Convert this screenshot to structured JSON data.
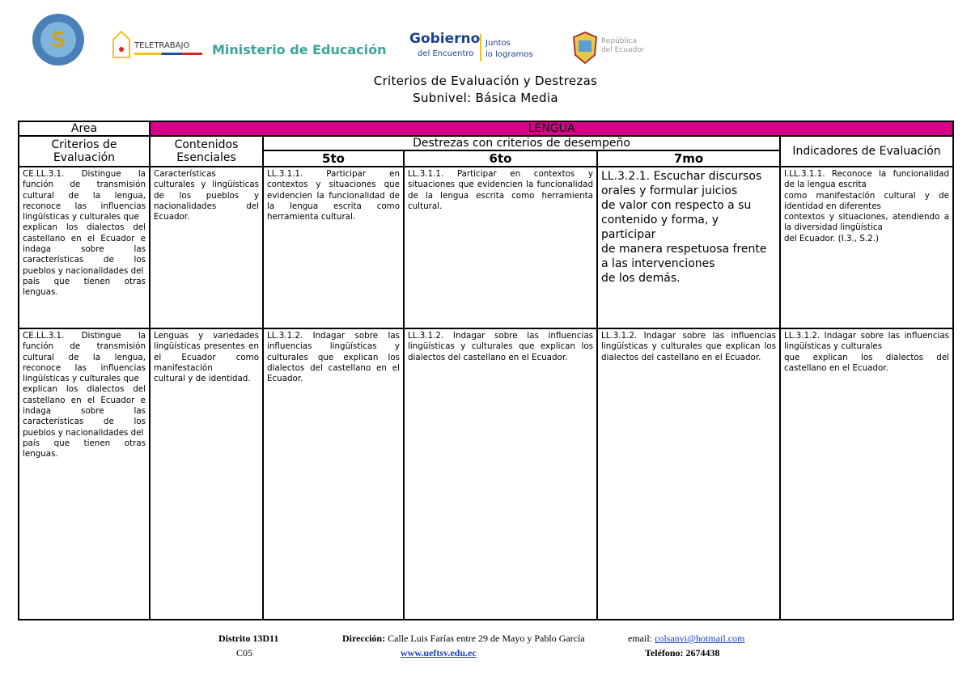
{
  "header": {
    "ministry": "Ministerio de Educación",
    "teletrabajo": "TELETRABAJO",
    "gobierno": "Gobierno",
    "gobierno_sub": "del Encuentro",
    "juntos": "Juntos",
    "juntos_sub": "lo logramos",
    "republica": "República del Ecuador",
    "title": "Criterios de Evaluación y Destrezas",
    "subtitle": "Subnivel: Básica Media"
  },
  "table": {
    "area_label": "Area",
    "area_value": "LENGUA",
    "col_criterios": "Criterios de Evaluación",
    "col_contenidos": "Contenidos Esenciales",
    "col_destrezas": "Destrezas con criterios de desempeño",
    "col_indicadores": "Indicadores de Evaluación",
    "grades": [
      "5to",
      "6to",
      "7mo"
    ],
    "rows": [
      {
        "criterio": "CE.LL.3.1. Distingue la función de transmisión cultural de la lengua, reconoce las influencias lingüísticas y culturales que\nexplican los dialectos del castellano en el Ecuador e indaga sobre las características de los pueblos y nacionalidades del\npaís que tienen otras lenguas.",
        "contenido": "Características culturales y lingüísticas de los pueblos y nacionalidades del Ecuador.",
        "d5": "LL.3.1.1. Participar en contextos y situaciones que evidencien la funcionalidad de la lengua escrita como herramienta cultural.",
        "d6": "LL.3.1.1. Participar en contextos y situaciones que evidencien la funcionalidad de la lengua escrita como herramienta cultural.",
        "d7": "LL.3.2.1. Escuchar discursos\norales y formular juicios\nde valor con respecto a su\ncontenido y forma, y\nparticipar\nde manera respetuosa frente\na las intervenciones\nde los demás.",
        "indicador": "I.LL.3.1.1. Reconoce la funcionalidad de la lengua escrita\ncomo manifestación cultural y de identidad en diferentes\ncontextos y situaciones, atendiendo a la diversidad lingüística\ndel Ecuador. (I.3., S.2.)"
      },
      {
        "criterio": "CE.LL.3.1. Distingue la función de transmisión cultural de la lengua, reconoce las influencias lingüísticas y culturales que\nexplican los dialectos del castellano en el Ecuador e indaga sobre las características de los pueblos y nacionalidades del\npaís que tienen otras lenguas.",
        "contenido": "Lenguas y variedades lingüísticas presentes en el Ecuador como manifestación\ncultural y de identidad.",
        "d5": "LL.3.1.2. Indagar sobre las influencias lingüísticas y culturales que explican los dialectos del castellano en el Ecuador.",
        "d6": "LL.3.1.2. Indagar sobre las influencias lingüísticas y culturales que explican los dialectos del castellano en el Ecuador.",
        "d7": "LL.3.1.2. Indagar sobre las influencias lingüísticas y culturales que explican los dialectos del castellano en el Ecuador.",
        "indicador": "LL.3.1.2. Indagar sobre las influencias lingüísticas y culturales\nque explican los dialectos del castellano en el Ecuador."
      }
    ]
  },
  "footer": {
    "distrito": "Distrito 13D11",
    "code": "C05",
    "direccion_label": "Dirección:",
    "direccion": "Calle Luis Farías entre 29 de Mayo y Pablo García",
    "web": "www.ueftsv.edu.ec",
    "email_label": "email:",
    "email": "colsanvi@hotmail.com",
    "telefono": "Teléfono: 2674438"
  },
  "colors": {
    "accent": "#d6008a",
    "ministry": "#3aa597"
  }
}
